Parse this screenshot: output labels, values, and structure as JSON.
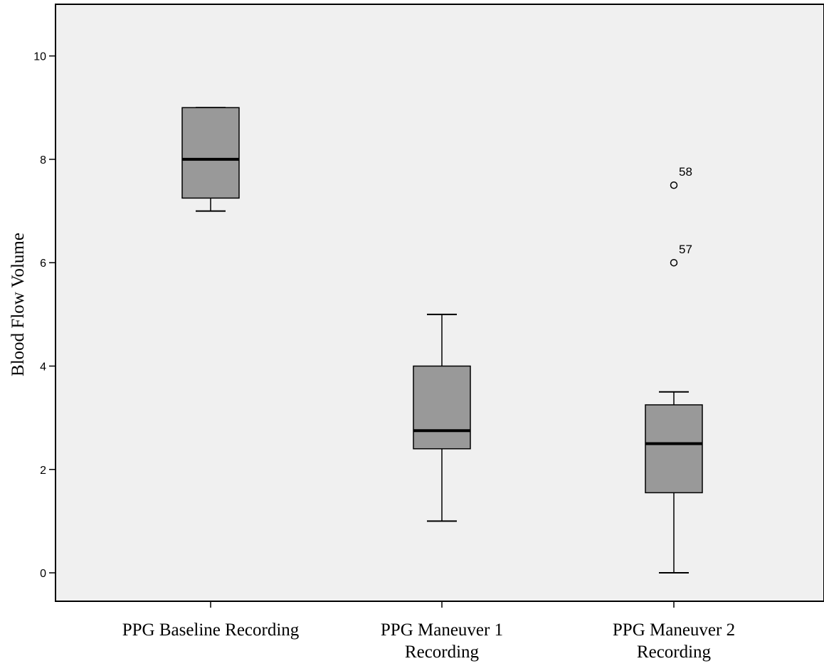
{
  "chart_data": {
    "type": "boxplot",
    "title": "",
    "xlabel": "",
    "ylabel": "Blood Flow Volume",
    "ylim": [
      -0.55,
      11
    ],
    "yticks": [
      "0",
      "2",
      "4",
      "6",
      "8",
      "10"
    ],
    "categories": [
      [
        "PPG Baseline Recording"
      ],
      [
        "PPG Maneuver 1",
        "Recording"
      ],
      [
        "PPG Maneuver 2",
        "Recording"
      ]
    ],
    "series": [
      {
        "min": 7,
        "q1": 7.25,
        "median": 8,
        "q3": 9,
        "max": 9,
        "outliers": []
      },
      {
        "min": 1,
        "q1": 2.4,
        "median": 2.75,
        "q3": 4,
        "max": 5,
        "outliers": []
      },
      {
        "min": 0,
        "q1": 1.55,
        "median": 2.5,
        "q3": 3.25,
        "max": 3.5,
        "outliers": [
          {
            "value": 7.5,
            "label": "58"
          },
          {
            "value": 6,
            "label": "57"
          }
        ]
      }
    ],
    "grid": false,
    "colors": {
      "plot_bg": "#f0f0f0",
      "box_fill": "#999999",
      "stroke": "#000000"
    }
  }
}
